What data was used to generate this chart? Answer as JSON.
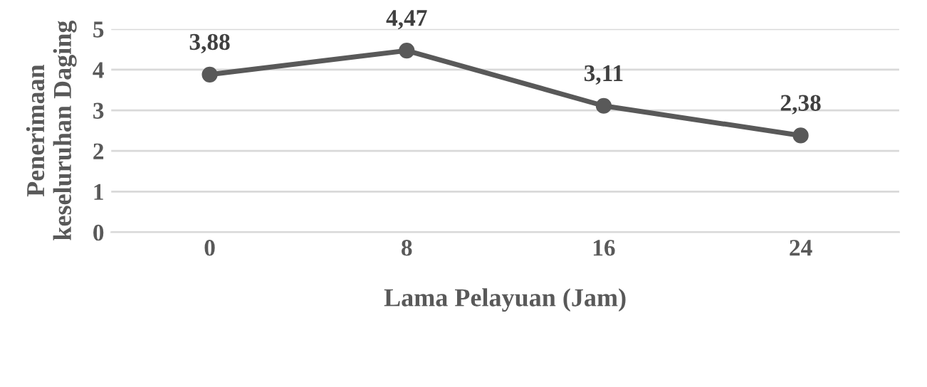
{
  "chart_data": {
    "type": "line",
    "xlabel": "Lama Pelayuan (Jam)",
    "ylabel": "Penerimaan\nkeseluruhan Daging",
    "categories": [
      "0",
      "8",
      "16",
      "24"
    ],
    "series": [
      {
        "color": "#595959",
        "values": [
          3.88,
          4.47,
          3.11,
          2.38
        ],
        "value_labels": [
          "3,88",
          "4,47",
          "3,11",
          "2,38"
        ]
      }
    ],
    "ylim": [
      0,
      5
    ],
    "yticks": [
      0,
      1,
      2,
      3,
      4,
      5
    ],
    "grid": "y",
    "marker": "circle",
    "line_style": "solid"
  }
}
